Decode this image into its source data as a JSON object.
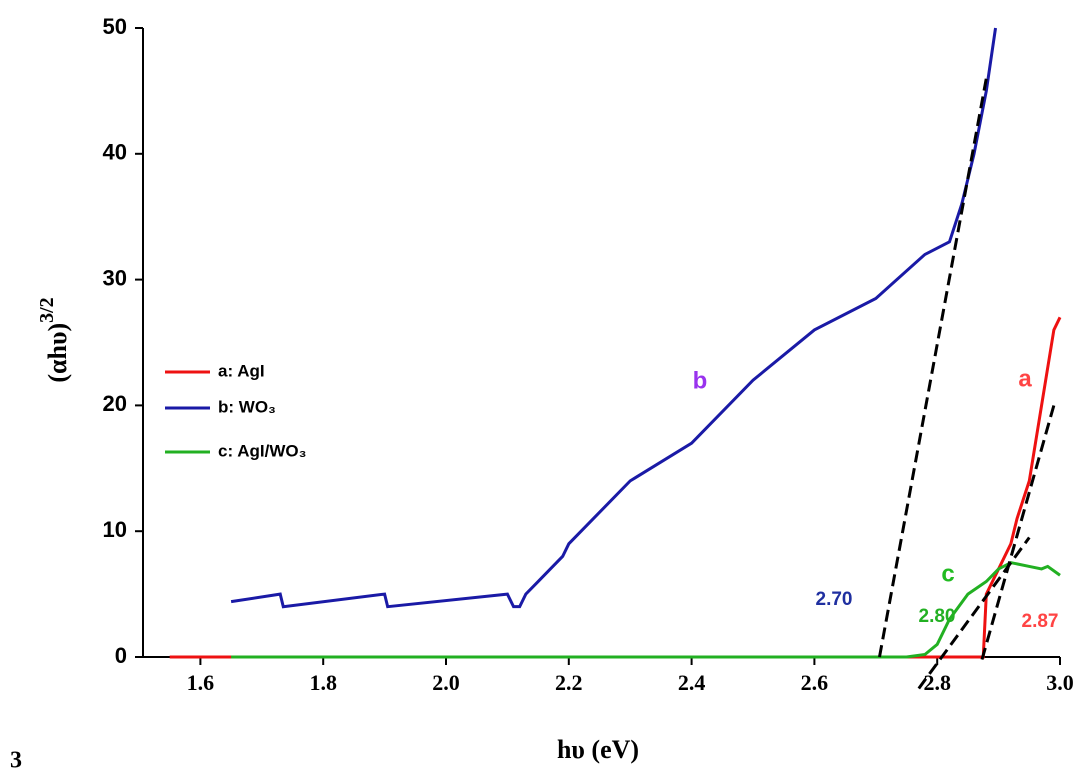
{
  "chart_data": {
    "type": "line",
    "xlabel": "hυ (eV)",
    "ylabel": "(αhυ)",
    "ylabel_sup": "3/2",
    "xlim": [
      1.5,
      3.0
    ],
    "xticks": [
      1.6,
      1.8,
      {
        "value": 2,
        "label": "2.0"
      },
      2.2,
      2.4,
      2.6,
      2.8,
      {
        "value": 3,
        "label": "3.0"
      }
    ],
    "ylim": [
      0,
      50
    ],
    "yticks": [
      0,
      10,
      20,
      30,
      40,
      50
    ],
    "legend": "left",
    "series": [
      {
        "name": "a: AgI",
        "color": "#ee1111",
        "x": [
          1.55,
          2.87,
          2.875,
          2.88,
          2.9,
          2.92,
          2.93,
          2.95,
          2.97,
          2.99,
          3.0
        ],
        "values": [
          0,
          0,
          0,
          5,
          7,
          9,
          11,
          14,
          20,
          26,
          27
        ]
      },
      {
        "name": "b: WO₃",
        "color": "#1a1aa6",
        "x": [
          1.65,
          1.73,
          1.735,
          1.9,
          1.905,
          2.1,
          2.11,
          2.12,
          2.13,
          2.15,
          2.17,
          2.19,
          2.2,
          2.3,
          2.4,
          2.5,
          2.6,
          2.7,
          2.78,
          2.82,
          2.84,
          2.86,
          2.88,
          2.895
        ],
        "values": [
          4.4,
          5,
          4,
          5,
          4,
          5,
          4,
          4,
          5,
          6,
          7,
          8,
          9,
          14,
          17,
          22,
          26,
          28.5,
          32,
          33,
          36,
          40,
          45,
          50
        ]
      },
      {
        "name": "c: AgI/WO₃",
        "color": "#22b022",
        "x": [
          1.65,
          2.75,
          2.78,
          2.8,
          2.82,
          2.85,
          2.88,
          2.9,
          2.92,
          2.95,
          2.97,
          2.98,
          3.0
        ],
        "values": [
          0,
          0,
          0.2,
          1,
          3,
          5,
          6,
          7,
          7.5,
          7.2,
          7,
          7.2,
          6.5
        ]
      }
    ],
    "tangent_lines": [
      {
        "x": [
          2.706,
          2.88
        ],
        "values": [
          0,
          46
        ]
      },
      {
        "x": [
          2.873,
          2.99
        ],
        "values": [
          -0.2,
          20
        ]
      },
      {
        "x": [
          2.77,
          2.95
        ],
        "values": [
          -2.5,
          9.5
        ]
      }
    ],
    "annotations": [
      {
        "text": "b",
        "color": "#9933ee"
      },
      {
        "text": "a",
        "color": "#ff4444"
      },
      {
        "text": "c",
        "color": "#22bb22"
      },
      {
        "text": "2.70",
        "color": "#1f2fa0"
      },
      {
        "text": "2.80",
        "color": "#22b022"
      },
      {
        "text": "2.87",
        "color": "#ff4444"
      }
    ],
    "page_fragment": "3"
  }
}
